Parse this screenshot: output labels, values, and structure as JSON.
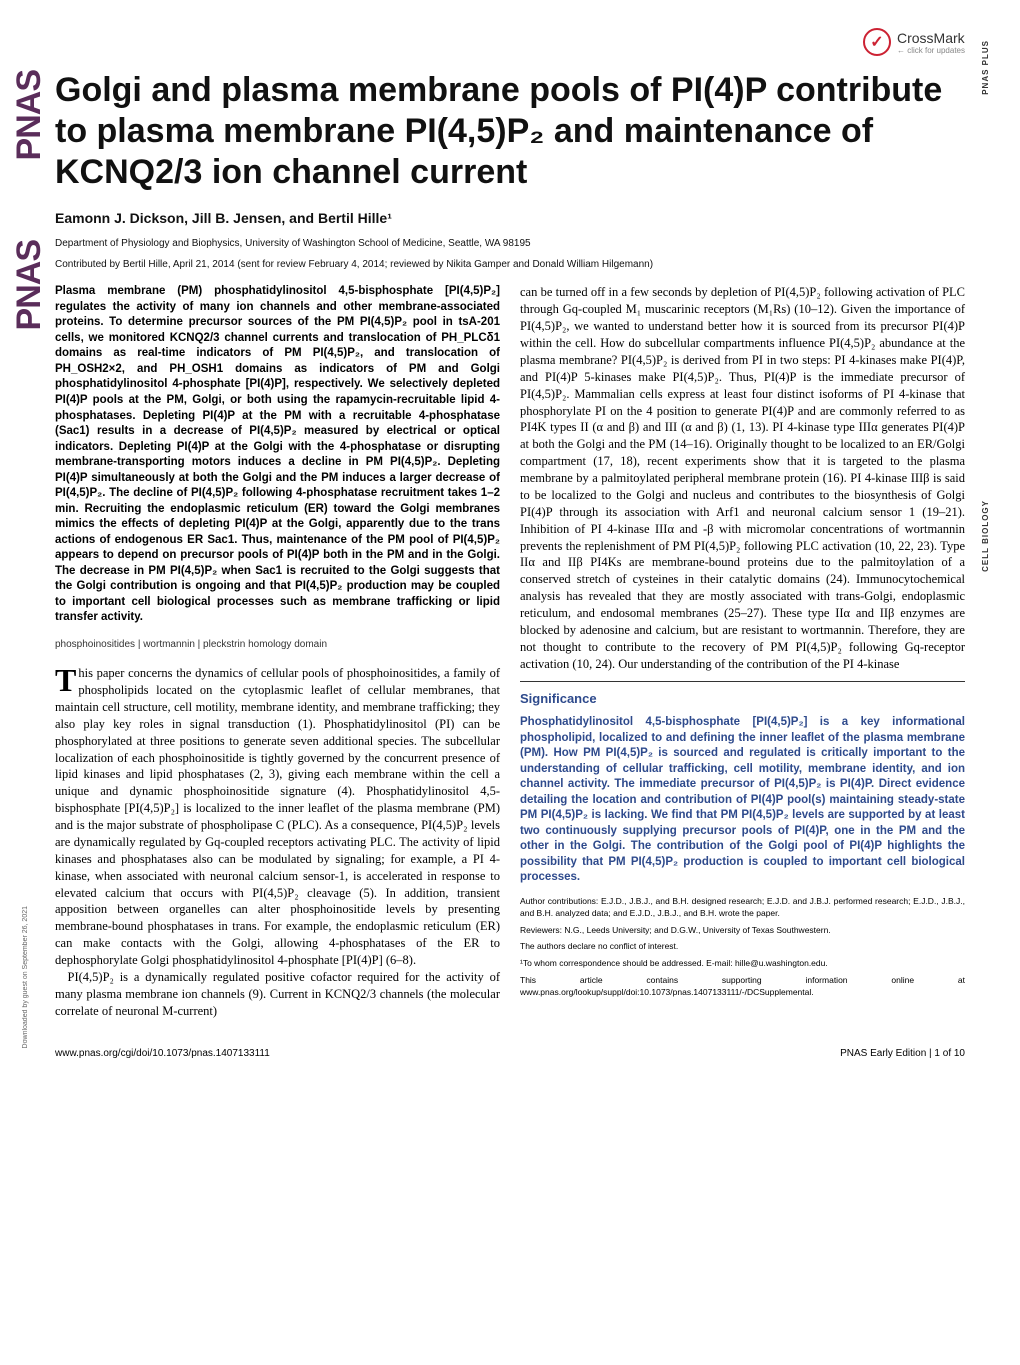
{
  "crossmark": {
    "label": "CrossMark",
    "sublabel": "← click for updates"
  },
  "side_labels": {
    "plus": "PNAS PLUS",
    "section": "CELL BIOLOGY"
  },
  "pnas_logo": "PNAS",
  "title": "Golgi and plasma membrane pools of PI(4)P contribute to plasma membrane PI(4,5)P₂ and maintenance of KCNQ2/3 ion channel current",
  "authors": "Eamonn J. Dickson, Jill B. Jensen, and Bertil Hille¹",
  "affiliation": "Department of Physiology and Biophysics, University of Washington School of Medicine, Seattle, WA 98195",
  "contributed": "Contributed by Bertil Hille, April 21, 2014 (sent for review February 4, 2014; reviewed by Nikita Gamper and Donald William Hilgemann)",
  "abstract": "Plasma membrane (PM) phosphatidylinositol 4,5-bisphosphate [PI(4,5)P₂] regulates the activity of many ion channels and other membrane-associated proteins. To determine precursor sources of the PM PI(4,5)P₂ pool in tsA-201 cells, we monitored KCNQ2/3 channel currents and translocation of PH_PLCδ1 domains as real-time indicators of PM PI(4,5)P₂, and translocation of PH_OSH2×2, and PH_OSH1 domains as indicators of PM and Golgi phosphatidylinositol 4-phosphate [PI(4)P], respectively. We selectively depleted PI(4)P pools at the PM, Golgi, or both using the rapamycin-recruitable lipid 4-phosphatases. Depleting PI(4)P at the PM with a recruitable 4-phosphatase (Sac1) results in a decrease of PI(4,5)P₂ measured by electrical or optical indicators. Depleting PI(4)P at the Golgi with the 4-phosphatase or disrupting membrane-transporting motors induces a decline in PM PI(4,5)P₂. Depleting PI(4)P simultaneously at both the Golgi and the PM induces a larger decrease of PI(4,5)P₂. The decline of PI(4,5)P₂ following 4-phosphatase recruitment takes 1–2 min. Recruiting the endoplasmic reticulum (ER) toward the Golgi membranes mimics the effects of depleting PI(4)P at the Golgi, apparently due to the trans actions of endogenous ER Sac1. Thus, maintenance of the PM pool of PI(4,5)P₂ appears to depend on precursor pools of PI(4)P both in the PM and in the Golgi. The decrease in PM PI(4,5)P₂ when Sac1 is recruited to the Golgi suggests that the Golgi contribution is ongoing and that PI(4,5)P₂ production may be coupled to important cell biological processes such as membrane trafficking or lipid transfer activity.",
  "keywords": "phosphoinositides | wortmannin | pleckstrin homology domain",
  "body_col1_p1": "This paper concerns the dynamics of cellular pools of phosphoinositides, a family of phospholipids located on the cytoplasmic leaflet of cellular membranes, that maintain cell structure, cell motility, membrane identity, and membrane trafficking; they also play key roles in signal transduction (1). Phosphatidylinositol (PI) can be phosphorylated at three positions to generate seven additional species. The subcellular localization of each phosphoinositide is tightly governed by the concurrent presence of lipid kinases and lipid phosphatases (2, 3), giving each membrane within the cell a unique and dynamic phosphoinositide signature (4). Phosphatidylinositol 4,5-bisphosphate [PI(4,5)P₂] is localized to the inner leaflet of the plasma membrane (PM) and is the major substrate of phospholipase C (PLC). As a consequence, PI(4,5)P₂ levels are dynamically regulated by Gq-coupled receptors activating PLC. The activity of lipid kinases and phosphatases also can be modulated by signaling; for example, a PI 4-kinase, when associated with neuronal calcium sensor-1, is accelerated in response to elevated calcium that occurs with PI(4,5)P₂ cleavage (5). In addition, transient apposition between organelles can alter phosphoinositide levels by presenting membrane-bound phosphatases in trans. For example, the endoplasmic reticulum (ER) can make contacts with the Golgi, allowing 4-phosphatases of the ER to dephosphorylate Golgi phosphatidylinositol 4-phosphate [PI(4)P] (6–8).",
  "body_col1_p2": "PI(4,5)P₂ is a dynamically regulated positive cofactor required for the activity of many plasma membrane ion channels (9). Current in KCNQ2/3 channels (the molecular correlate of neuronal M-current)",
  "body_col2_p1": "can be turned off in a few seconds by depletion of PI(4,5)P₂ following activation of PLC through Gq-coupled M₁ muscarinic receptors (M₁Rs) (10–12). Given the importance of PI(4,5)P₂, we wanted to understand better how it is sourced from its precursor PI(4)P within the cell. How do subcellular compartments influence PI(4,5)P₂ abundance at the plasma membrane? PI(4,5)P₂ is derived from PI in two steps: PI 4-kinases make PI(4)P, and PI(4)P 5-kinases make PI(4,5)P₂. Thus, PI(4)P is the immediate precursor of PI(4,5)P₂. Mammalian cells express at least four distinct isoforms of PI 4-kinase that phosphorylate PI on the 4 position to generate PI(4)P and are commonly referred to as PI4K types II (α and β) and III (α and β) (1, 13). PI 4-kinase type IIIα generates PI(4)P at both the Golgi and the PM (14–16). Originally thought to be localized to an ER/Golgi compartment (17, 18), recent experiments show that it is targeted to the plasma membrane by a palmitoylated peripheral membrane protein (16). PI 4-kinase IIIβ is said to be localized to the Golgi and nucleus and contributes to the biosynthesis of Golgi PI(4)P through its association with Arf1 and neuronal calcium sensor 1 (19–21). Inhibition of PI 4-kinase IIIα and -β with micromolar concentrations of wortmannin prevents the replenishment of PM PI(4,5)P₂ following PLC activation (10, 22, 23). Type IIα and IIβ PI4Ks are membrane-bound proteins due to the palmitoylation of a conserved stretch of cysteines in their catalytic domains (24). Immunocytochemical analysis has revealed that they are mostly associated with trans-Golgi, endoplasmic reticulum, and endosomal membranes (25–27). These type IIα and IIβ enzymes are blocked by adenosine and calcium, but are resistant to wortmannin. Therefore, they are not thought to contribute to the recovery of PM PI(4,5)P₂ following Gq-receptor activation (10, 24). Our understanding of the contribution of the PI 4-kinase",
  "significance": {
    "title": "Significance",
    "text": "Phosphatidylinositol 4,5-bisphosphate [PI(4,5)P₂] is a key informational phospholipid, localized to and defining the inner leaflet of the plasma membrane (PM). How PM PI(4,5)P₂ is sourced and regulated is critically important to the understanding of cellular trafficking, cell motility, membrane identity, and ion channel activity. The immediate precursor of PI(4,5)P₂ is PI(4)P. Direct evidence detailing the location and contribution of PI(4)P pool(s) maintaining steady-state PM PI(4,5)P₂ is lacking. We find that PM PI(4,5)P₂ levels are supported by at least two continuously supplying precursor pools of PI(4)P, one in the PM and the other in the Golgi. The contribution of the Golgi pool of PI(4)P highlights the possibility that PM PI(4,5)P₂ production is coupled to important cell biological processes."
  },
  "footnotes": {
    "contributions": "Author contributions: E.J.D., J.B.J., and B.H. designed research; E.J.D. and J.B.J. performed research; E.J.D., J.B.J., and B.H. analyzed data; and E.J.D., J.B.J., and B.H. wrote the paper.",
    "reviewers": "Reviewers: N.G., Leeds University; and D.G.W., University of Texas Southwestern.",
    "conflict": "The authors declare no conflict of interest.",
    "correspondence": "¹To whom correspondence should be addressed. E-mail: hille@u.washington.edu.",
    "supporting": "This article contains supporting information online at www.pnas.org/lookup/suppl/doi:10.1073/pnas.1407133111/-/DCSupplemental."
  },
  "footer": {
    "doi": "www.pnas.org/cgi/doi/10.1073/pnas.1407133111",
    "page": "PNAS Early Edition | 1 of 10"
  },
  "downloaded": "Downloaded by guest on September 26, 2021"
}
